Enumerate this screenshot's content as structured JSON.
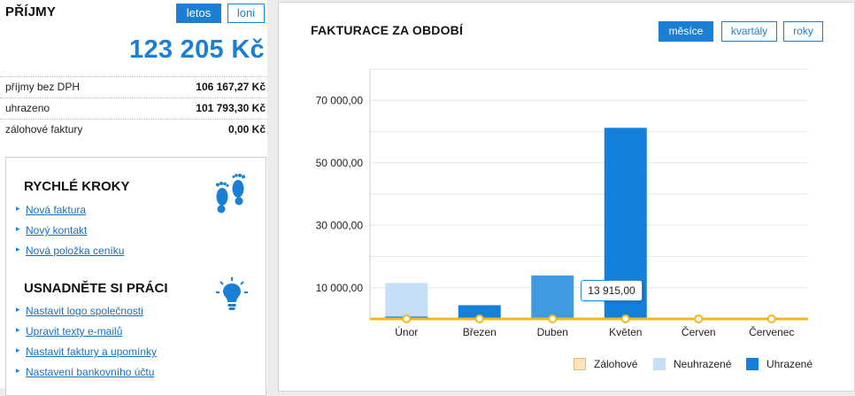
{
  "income": {
    "title": "PŘÍJMY",
    "toggle": {
      "current": "letos",
      "previous": "loni"
    },
    "total": "123 205 Kč",
    "rows": [
      {
        "label": "příjmy bez DPH",
        "value": "106 167,27 Kč"
      },
      {
        "label": "uhrazeno",
        "value": "101 793,30 Kč"
      },
      {
        "label": "zálohové faktury",
        "value": "0,00 Kč"
      }
    ]
  },
  "quick_steps": {
    "title": "RYCHLÉ KROKY",
    "icon": "footprints-icon",
    "links": [
      "Nová faktura",
      "Nový kontakt",
      "Nová položka ceníku"
    ]
  },
  "easier_work": {
    "title": "USNADNĚTE SI PRÁCI",
    "icon": "lightbulb-icon",
    "links": [
      "Nastavit logo společnosti",
      "Upravit texty e-mailů",
      "Nastavit faktury a upomínky",
      "Nastavení bankovního účtu"
    ]
  },
  "chart_panel": {
    "title": "FAKTURACE ZA OBDOBÍ",
    "period_buttons": {
      "months": "měsíce",
      "quarters": "kvartály",
      "years": "roky"
    },
    "tooltip": "13 915,00"
  },
  "colors": {
    "accent": "#1b7fd4",
    "zalohove": "#fde3bd",
    "neuhrazene": "#c5dff6",
    "uhrazene": "#1580db",
    "duben_bar": "#3d9ae3",
    "line": "#f0b922"
  },
  "chart_data": {
    "type": "bar",
    "stacked": true,
    "categories": [
      "Únor",
      "Březen",
      "Duben",
      "Květen",
      "Červen",
      "Červenec"
    ],
    "series": [
      {
        "name": "Zálohové",
        "values": [
          0,
          0,
          0,
          0,
          0,
          0
        ]
      },
      {
        "name": "Neuhrazené",
        "values": [
          10700,
          0,
          0,
          0,
          0,
          0
        ]
      },
      {
        "name": "Uhrazené",
        "values": [
          800,
          4400,
          13915,
          61200,
          0,
          0
        ]
      }
    ],
    "line_series": {
      "values": [
        0,
        0,
        0,
        0,
        0,
        0
      ]
    },
    "y_ticks": [
      "10 000,00",
      "30 000,00",
      "50 000,00",
      "70 000,00"
    ],
    "y_tick_values": [
      10000,
      30000,
      50000,
      70000
    ],
    "ylim": [
      0,
      80000
    ],
    "grid": true,
    "legend": "bottom-right"
  }
}
